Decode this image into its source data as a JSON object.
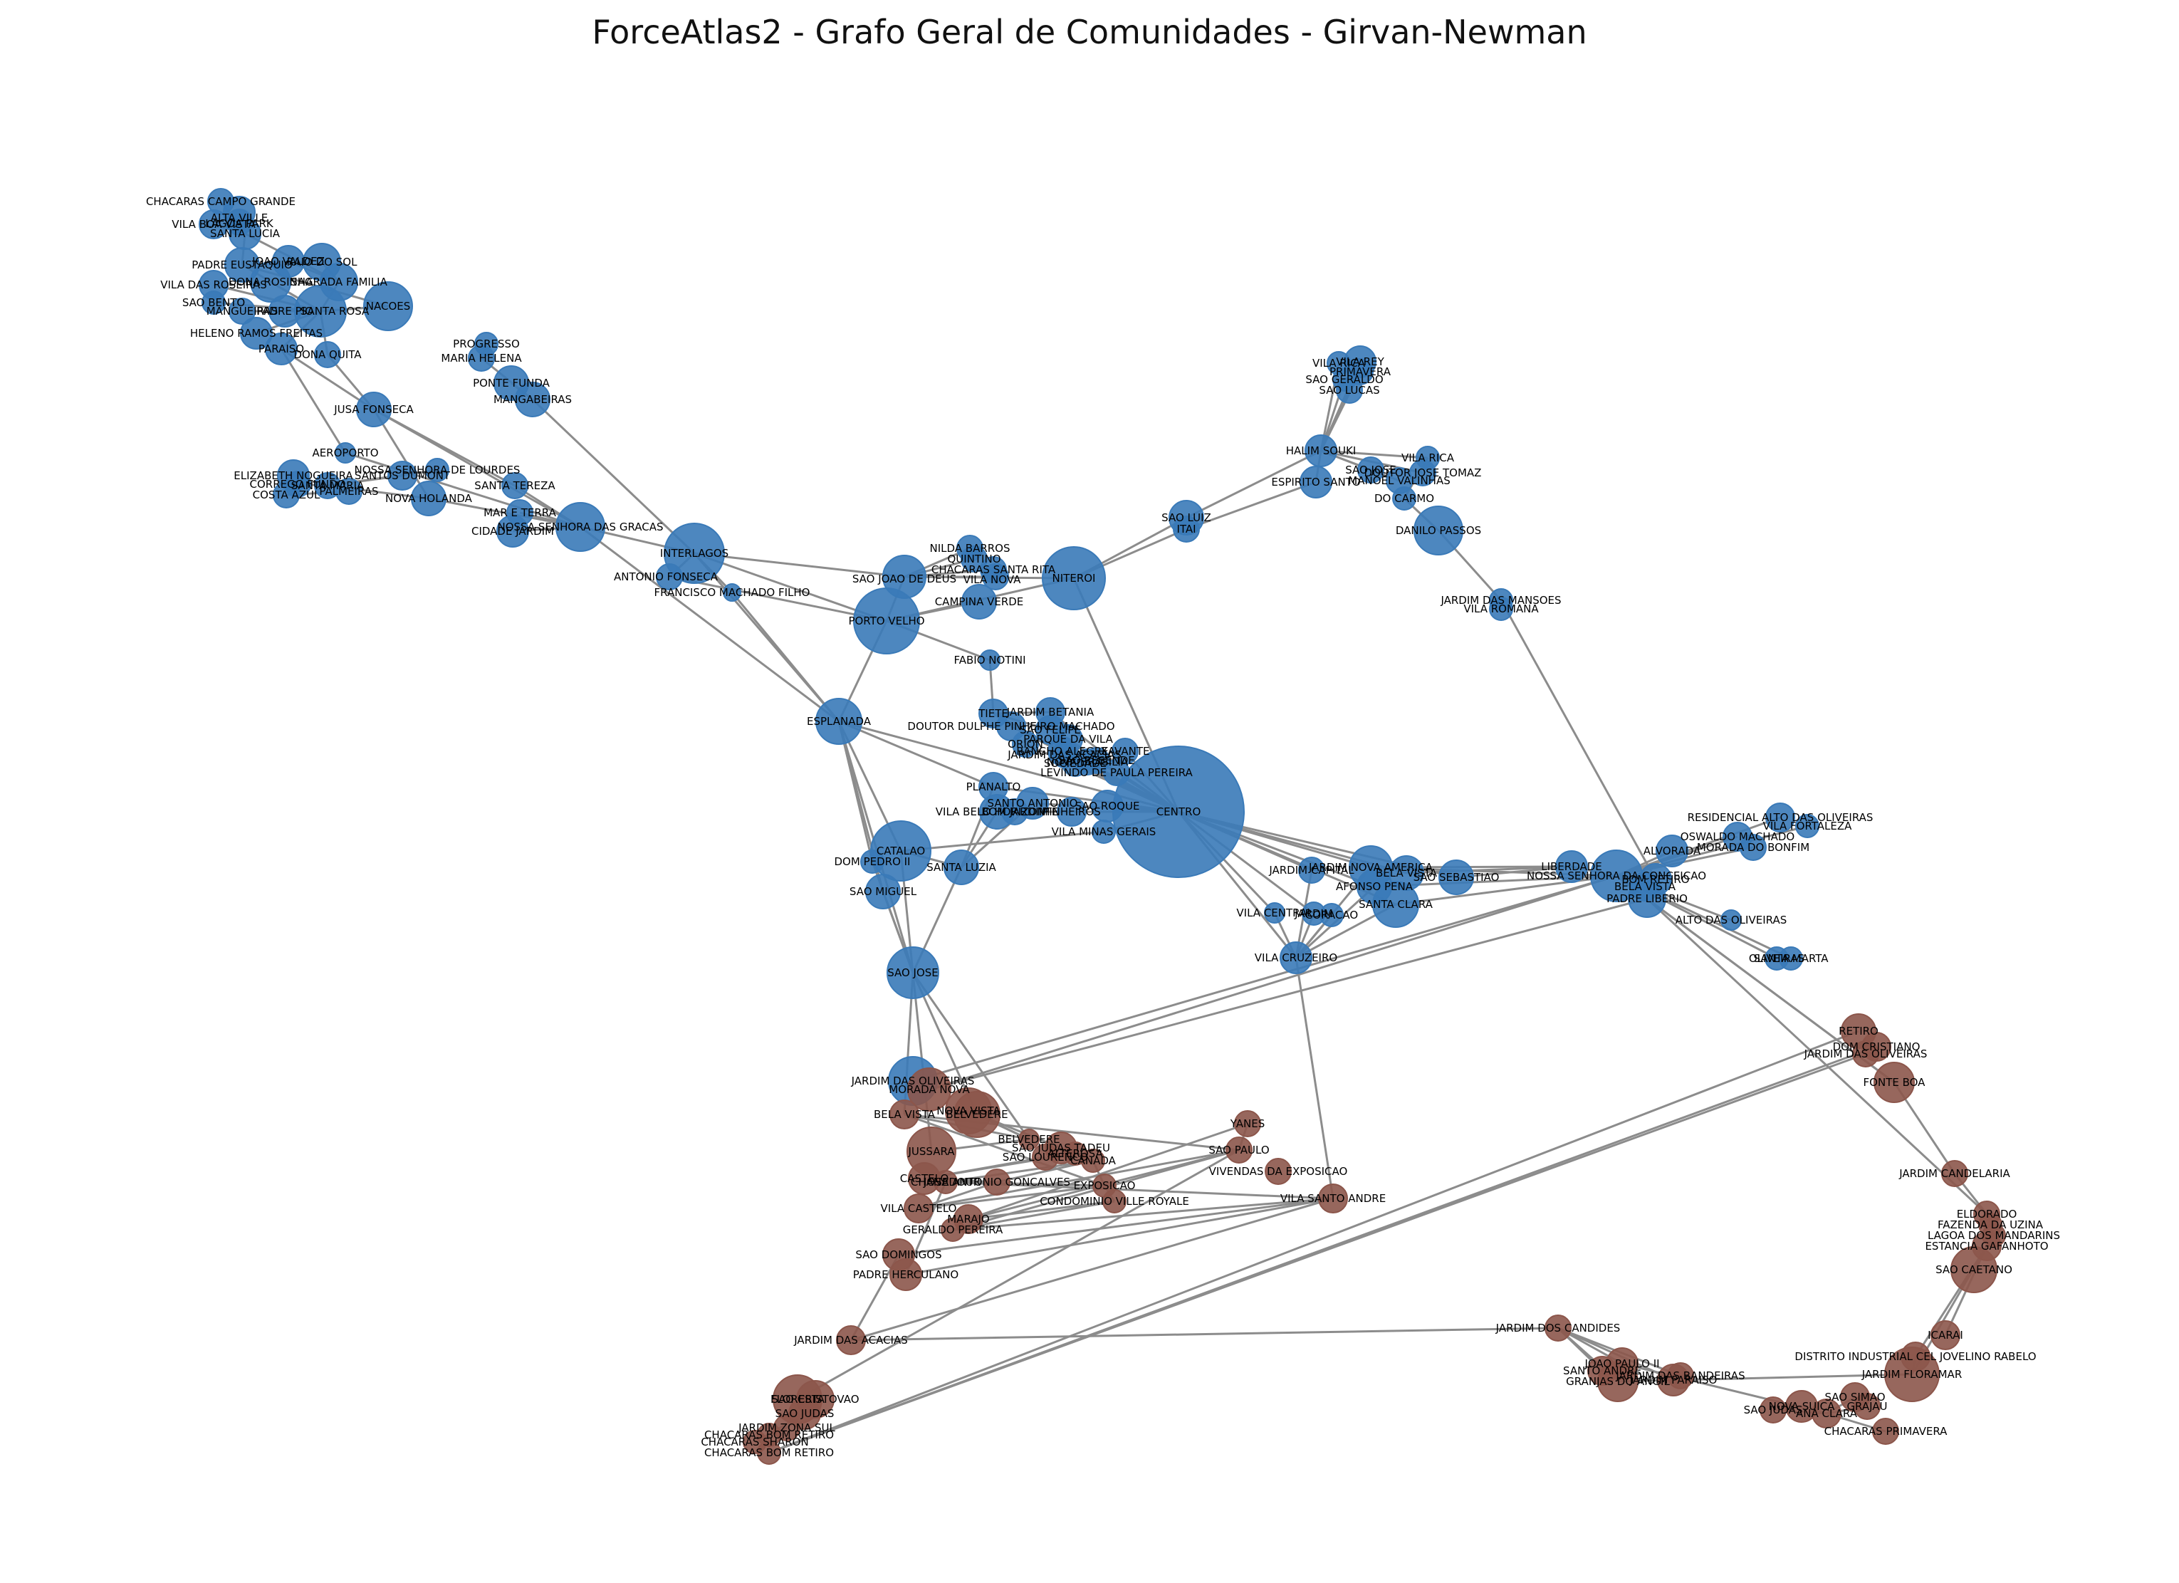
{
  "title": "ForceAtlas2 - Grafo Geral de Comunidades - Girvan-Newman",
  "colors": {
    "community_blue": "#3a7ab8",
    "community_brown": "#8c564b",
    "edge": "#8c8c8c"
  },
  "communities": [
    {
      "id": "blue",
      "color": "#3a7ab8"
    },
    {
      "id": "brown",
      "color": "#8c564b"
    }
  ],
  "nodes": [
    {
      "label": "CHACARAS CAMPO GRANDE",
      "c": 0
    },
    {
      "label": "ALTA VILLE",
      "c": 0
    },
    {
      "label": "VILA BOA VISTA",
      "c": 0
    },
    {
      "label": "LAGOA PARK",
      "c": 0
    },
    {
      "label": "SANTA LUCIA",
      "c": 0
    },
    {
      "label": "JOAO VALDEZ",
      "c": 0
    },
    {
      "label": "RAIO DO SOL",
      "c": 0
    },
    {
      "label": "PADRE EUSTAQUIO",
      "c": 0
    },
    {
      "label": "DONA ROSINHA",
      "c": 0
    },
    {
      "label": "SAGRADA FAMILIA",
      "c": 0
    },
    {
      "label": "VILA DAS ROSEIRAS",
      "c": 0
    },
    {
      "label": "SAO BENTO",
      "c": 0
    },
    {
      "label": "MANGUEIRAS",
      "c": 0
    },
    {
      "label": "PADRE PIO",
      "c": 0
    },
    {
      "label": "SANTA ROSA",
      "c": 0
    },
    {
      "label": "NACOES",
      "c": 0
    },
    {
      "label": "HELENO RAMOS FREITAS",
      "c": 0
    },
    {
      "label": "PARAISO",
      "c": 0
    },
    {
      "label": "DONA QUITA",
      "c": 0
    },
    {
      "label": "PROGRESSO",
      "c": 0
    },
    {
      "label": "MARIA HELENA",
      "c": 0
    },
    {
      "label": "PONTE FUNDA",
      "c": 0
    },
    {
      "label": "MANGABEIRAS",
      "c": 0
    },
    {
      "label": "JUSA FONSECA",
      "c": 0
    },
    {
      "label": "AEROPORTO",
      "c": 0
    },
    {
      "label": "ELIZABETH NOGUEIRA",
      "c": 0
    },
    {
      "label": "SANTOS DUMONT",
      "c": 0
    },
    {
      "label": "NOSSA SENHORA DE LOURDES",
      "c": 0
    },
    {
      "label": "CORREGO FUNDO",
      "c": 0
    },
    {
      "label": "SANTA MARIA",
      "c": 0
    },
    {
      "label": "PALMEIRAS",
      "c": 0
    },
    {
      "label": "COSTA AZUL",
      "c": 0
    },
    {
      "label": "NOVA HOLANDA",
      "c": 0
    },
    {
      "label": "SANTA TEREZA",
      "c": 0
    },
    {
      "label": "MAR E TERRA",
      "c": 0
    },
    {
      "label": "CIDADE JARDIM",
      "c": 0
    },
    {
      "label": "NOSSA SENHORA DAS GRACAS",
      "c": 0
    },
    {
      "label": "INTERLAGOS",
      "c": 0
    },
    {
      "label": "ANTONIO FONSECA",
      "c": 0
    },
    {
      "label": "FRANCISCO MACHADO FILHO",
      "c": 0
    },
    {
      "label": "NILDA BARROS",
      "c": 0
    },
    {
      "label": "QUINTINO",
      "c": 0
    },
    {
      "label": "CHACARAS SANTA RITA",
      "c": 0
    },
    {
      "label": "SAO JOAO DE DEUS",
      "c": 0
    },
    {
      "label": "VILA NOVA",
      "c": 0
    },
    {
      "label": "CAMPINA VERDE",
      "c": 0
    },
    {
      "label": "PORTO VELHO",
      "c": 0
    },
    {
      "label": "NITEROI",
      "c": 0
    },
    {
      "label": "SAO LUIZ",
      "c": 0
    },
    {
      "label": "ITAI",
      "c": 0
    },
    {
      "label": "VILA RICA",
      "c": 0
    },
    {
      "label": "VILA REY",
      "c": 0
    },
    {
      "label": "PRIMAVERA",
      "c": 0
    },
    {
      "label": "SAO GERALDO",
      "c": 0
    },
    {
      "label": "SAO LUCAS",
      "c": 0
    },
    {
      "label": "HALIM SOUKI",
      "c": 0
    },
    {
      "label": "VILA RICA",
      "c": 0
    },
    {
      "label": "DOUTOR JOSE TOMAZ",
      "c": 0
    },
    {
      "label": "ESPIRITO SANTO",
      "c": 0
    },
    {
      "label": "SAO JOSE",
      "c": 0
    },
    {
      "label": "MANOEL VALINHAS",
      "c": 0
    },
    {
      "label": "DO CARMO",
      "c": 0
    },
    {
      "label": "DANILO PASSOS",
      "c": 0
    },
    {
      "label": "JARDIM DAS MANSOES",
      "c": 0
    },
    {
      "label": "VILA ROMANA",
      "c": 0
    },
    {
      "label": "FABIO NOTINI",
      "c": 0
    },
    {
      "label": "ESPLANADA",
      "c": 0
    },
    {
      "label": "TIETE",
      "c": 0
    },
    {
      "label": "JARDIM BETANIA",
      "c": 0
    },
    {
      "label": "DOUTOR DULPHE PINHEIRO MACHADO",
      "c": 0
    },
    {
      "label": "SAO FELIPE",
      "c": 0
    },
    {
      "label": "PARQUE DA VILA",
      "c": 0
    },
    {
      "label": "RANCHO ALEGRE",
      "c": 0
    },
    {
      "label": "ORION",
      "c": 0
    },
    {
      "label": "XAVANTE",
      "c": 0
    },
    {
      "label": "JARDIM DAS ACACIAS",
      "c": 0
    },
    {
      "label": "SOCIEDADE",
      "c": 0
    },
    {
      "label": "NOVA BRASILIA",
      "c": 0
    },
    {
      "label": "SAO RESENDE",
      "c": 0
    },
    {
      "label": "LEVINDO DE PAULA PEREIRA",
      "c": 0
    },
    {
      "label": "PLANALTO",
      "c": 0
    },
    {
      "label": "SANTO ANTONIO",
      "c": 0
    },
    {
      "label": "VILA BELO HORIZONTE",
      "c": 0
    },
    {
      "label": "BOM JARDIM",
      "c": 0
    },
    {
      "label": "PINHEIROS",
      "c": 0
    },
    {
      "label": "SAO ROQUE",
      "c": 0
    },
    {
      "label": "CENTRO",
      "c": 0
    },
    {
      "label": "VILA MINAS GERAIS",
      "c": 0
    },
    {
      "label": "CATALAO",
      "c": 0
    },
    {
      "label": "DOM PEDRO II",
      "c": 0
    },
    {
      "label": "SANTA LUZIA",
      "c": 0
    },
    {
      "label": "SAO MIGUEL",
      "c": 0
    },
    {
      "label": "SAO JOSE",
      "c": 0
    },
    {
      "label": "JARDIM CAPITAL",
      "c": 0
    },
    {
      "label": "JARDIM NOVA AMERICA",
      "c": 0
    },
    {
      "label": "BELA VISTA",
      "c": 0
    },
    {
      "label": "SAO SEBASTIAO",
      "c": 0
    },
    {
      "label": "AFONSO PENA",
      "c": 0
    },
    {
      "label": "SANTA CLARA",
      "c": 0
    },
    {
      "label": "VILA CENTRAL",
      "c": 0
    },
    {
      "label": "JARDIM",
      "c": 0
    },
    {
      "label": "CORACAO",
      "c": 0
    },
    {
      "label": "VILA CRUZEIRO",
      "c": 0
    },
    {
      "label": "LIBERDADE",
      "c": 0
    },
    {
      "label": "NOSSA SENHORA DA CONCEICAO",
      "c": 0
    },
    {
      "label": "BOM RETIRO",
      "c": 0
    },
    {
      "label": "BELA VISTA",
      "c": 0
    },
    {
      "label": "PADRE LIBERIO",
      "c": 0
    },
    {
      "label": "ALVORADA",
      "c": 0
    },
    {
      "label": "OSWALDO MACHADO",
      "c": 0
    },
    {
      "label": "RESIDENCIAL ALTO DAS OLIVEIRAS",
      "c": 0
    },
    {
      "label": "VILA FORTALEZA",
      "c": 0
    },
    {
      "label": "MORADA DO BONFIM",
      "c": 0
    },
    {
      "label": "ALTO DAS OLIVEIRAS",
      "c": 0
    },
    {
      "label": "OLIVEIRAS",
      "c": 0
    },
    {
      "label": "SANTA MARTA",
      "c": 0
    },
    {
      "label": "JARDIM DAS OLIVEIRAS",
      "c": 0
    },
    {
      "label": "MORADA NOVA",
      "c": 1
    },
    {
      "label": "BELA VISTA",
      "c": 1
    },
    {
      "label": "NOVA VISTA",
      "c": 1
    },
    {
      "label": "BELVEDERE",
      "c": 1
    },
    {
      "label": "BELVEDERE",
      "c": 1
    },
    {
      "label": "JUSSARA",
      "c": 1
    },
    {
      "label": "SAO JUDAS TADEU",
      "c": 1
    },
    {
      "label": "SAO LOURENCO",
      "c": 1
    },
    {
      "label": "ALTEROSA",
      "c": 1
    },
    {
      "label": "CANADA",
      "c": 1
    },
    {
      "label": "CASTELO",
      "c": 1
    },
    {
      "label": "JOSE ANTONIO GONCALVES",
      "c": 1
    },
    {
      "label": "CHANADOUR",
      "c": 1
    },
    {
      "label": "EXPOSICAO",
      "c": 1
    },
    {
      "label": "CONDOMINIO VILLE ROYALE",
      "c": 1
    },
    {
      "label": "VILA CASTELO",
      "c": 1
    },
    {
      "label": "MARAJO",
      "c": 1
    },
    {
      "label": "GERALDO PEREIRA",
      "c": 1
    },
    {
      "label": "YANES",
      "c": 1
    },
    {
      "label": "SAO PAULO",
      "c": 1
    },
    {
      "label": "VIVENDAS DA EXPOSICAO",
      "c": 1
    },
    {
      "label": "VILA SANTO ANDRE",
      "c": 1
    },
    {
      "label": "SAO DOMINGOS",
      "c": 1
    },
    {
      "label": "PADRE HERCULANO",
      "c": 1
    },
    {
      "label": "JARDIM DAS ACACIAS",
      "c": 1
    },
    {
      "label": "FLORESTA",
      "c": 1
    },
    {
      "label": "SAO CRISTOVAO",
      "c": 1
    },
    {
      "label": "SAO JUDAS",
      "c": 1
    },
    {
      "label": "JARDIM ZONA SUL",
      "c": 1
    },
    {
      "label": "CHACARAS SHARON",
      "c": 1
    },
    {
      "label": "CHACARAS BOM RETIRO",
      "c": 1
    },
    {
      "label": "CHACARAS BOM RETIRO",
      "c": 1
    },
    {
      "label": "RETIRO",
      "c": 1
    },
    {
      "label": "DOM CRISTIANO",
      "c": 1
    },
    {
      "label": "JARDIM DAS OLIVEIRAS",
      "c": 1
    },
    {
      "label": "FONTE BOA",
      "c": 1
    },
    {
      "label": "JARDIM CANDELARIA",
      "c": 1
    },
    {
      "label": "ELDORADO",
      "c": 1
    },
    {
      "label": "FAZENDA DA UZINA",
      "c": 1
    },
    {
      "label": "LAGOA DOS MANDARINS",
      "c": 1
    },
    {
      "label": "ESTANCIA GAFANHOTO",
      "c": 1
    },
    {
      "label": "SAO CAETANO",
      "c": 1
    },
    {
      "label": "ICARAI",
      "c": 1
    },
    {
      "label": "DISTRITO INDUSTRIAL CEL JOVELINO RABELO",
      "c": 1
    },
    {
      "label": "JARDIM FLORAMAR",
      "c": 1
    },
    {
      "label": "JARDIM DOS CANDIDES",
      "c": 1
    },
    {
      "label": "JOAO PAULO II",
      "c": 1
    },
    {
      "label": "SANTO ANDRE",
      "c": 1
    },
    {
      "label": "GRANJAS DO ANGIL",
      "c": 1
    },
    {
      "label": "JARDIM PARAISO",
      "c": 1
    },
    {
      "label": "JARDIM DAS BANDEIRAS",
      "c": 1
    },
    {
      "label": "SAO JUDAS",
      "c": 1
    },
    {
      "label": "NOVA SUICA",
      "c": 1
    },
    {
      "label": "SAO SIMAO",
      "c": 1
    },
    {
      "label": "GRAJAU",
      "c": 1
    },
    {
      "label": "ANA CLARA",
      "c": 1
    },
    {
      "label": "CHACARAS PRIMAVERA",
      "c": 1
    },
    {
      "label": "SAVASSI",
      "c": 1
    }
  ]
}
